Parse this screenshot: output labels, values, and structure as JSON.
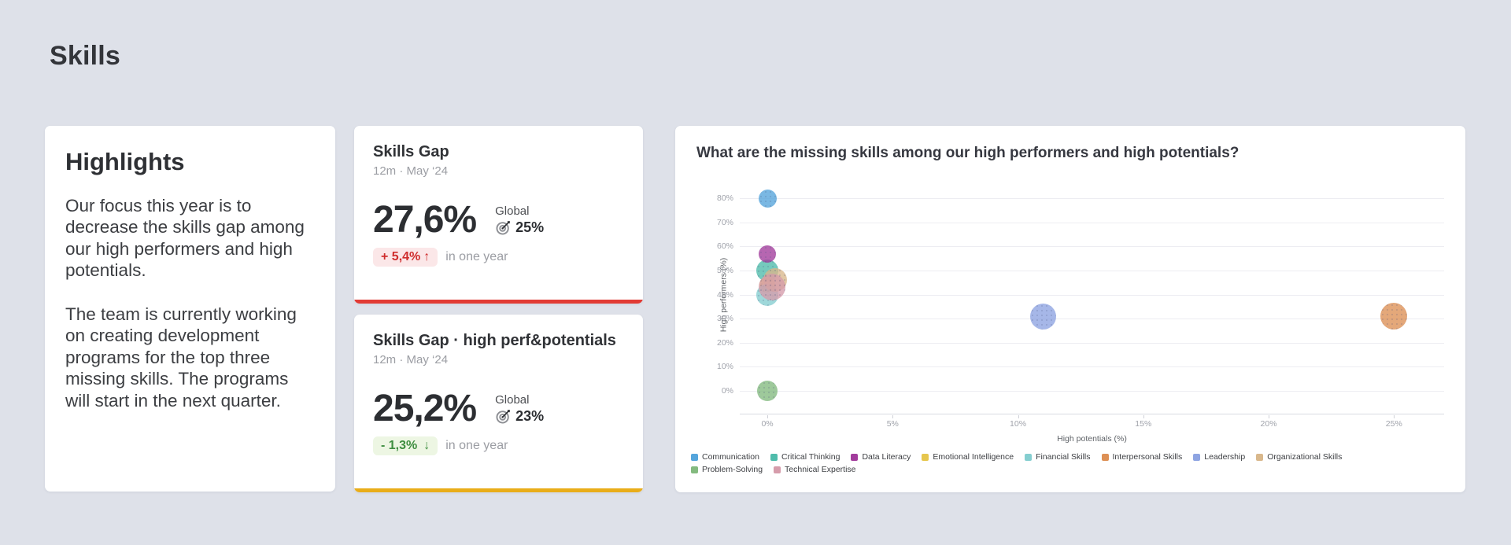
{
  "page": {
    "title": "Skills",
    "background": "#dee1e9"
  },
  "highlights": {
    "title": "Highlights",
    "paragraph_1": "Our focus this year is to decrease the skills gap among our high performers and high potentials.",
    "paragraph_2": "The team is currently working on creating development programs for the top three missing skills. The programs will start in the next quarter."
  },
  "kpi_cards": [
    {
      "title": "Skills Gap",
      "subtitle": "12m · May ‘24",
      "value": "27,6%",
      "global_label": "Global",
      "global_value": "25%",
      "delta_value": "+ 5,4%",
      "delta_arrow": "↑",
      "delta_note": "in one year",
      "accent_color": "#e23b35",
      "delta_text_color": "#cf2d2d",
      "delta_bg_color": "#fbe7e8"
    },
    {
      "title": "Skills Gap · high perf&potentials",
      "subtitle": "12m · May ‘24",
      "value": "25,2%",
      "global_label": "Global",
      "global_value": "23%",
      "delta_value": "- 1,3%",
      "delta_arrow": "↓",
      "delta_note": "in one year",
      "accent_color": "#e9ad19",
      "delta_text_color": "#3e8e40",
      "delta_bg_color": "#edf6e3"
    }
  ],
  "chart_data": {
    "type": "bubble",
    "title": "What are the missing skills among our high performers and high potentials?",
    "xlabel": "High potentials (%)",
    "ylabel": "High performers (%)",
    "x_ticks": [
      0,
      5,
      10,
      15,
      20,
      25
    ],
    "y_ticks": [
      0,
      10,
      20,
      30,
      40,
      50,
      60,
      70,
      80
    ],
    "x_tick_suffix": "%",
    "y_tick_suffix": "%",
    "x_range": [
      -1.1,
      27
    ],
    "y_range": [
      -9.8,
      84
    ],
    "grid": true,
    "legend_position": "bottom",
    "series": [
      {
        "name": "Communication",
        "color": "#55a5dc",
        "x": 0,
        "y": 80,
        "size": 23
      },
      {
        "name": "Critical Thinking",
        "color": "#4fbcab",
        "x": 0,
        "y": 50,
        "size": 28
      },
      {
        "name": "Data Literacy",
        "color": "#a23c9c",
        "x": 0,
        "y": 57,
        "size": 22
      },
      {
        "name": "Emotional Intelligence",
        "color": "#e6c64d",
        "x": 0,
        "y": 44,
        "size": 20
      },
      {
        "name": "Financial Skills",
        "color": "#85ced0",
        "x": 0,
        "y": 40,
        "size": 28
      },
      {
        "name": "Interpersonal Skills",
        "color": "#dd9055",
        "x": 25,
        "y": 31,
        "size": 34
      },
      {
        "name": "Leadership",
        "color": "#8ea4e2",
        "x": 11,
        "y": 31,
        "size": 33
      },
      {
        "name": "Organizational Skills",
        "color": "#d9b88c",
        "x": 0.3,
        "y": 46,
        "size": 30
      },
      {
        "name": "Problem-Solving",
        "color": "#83ba7f",
        "x": 0,
        "y": 0,
        "size": 26
      },
      {
        "name": "Technical Expertise",
        "color": "#d69cab",
        "x": 0.2,
        "y": 43,
        "size": 34
      }
    ]
  }
}
